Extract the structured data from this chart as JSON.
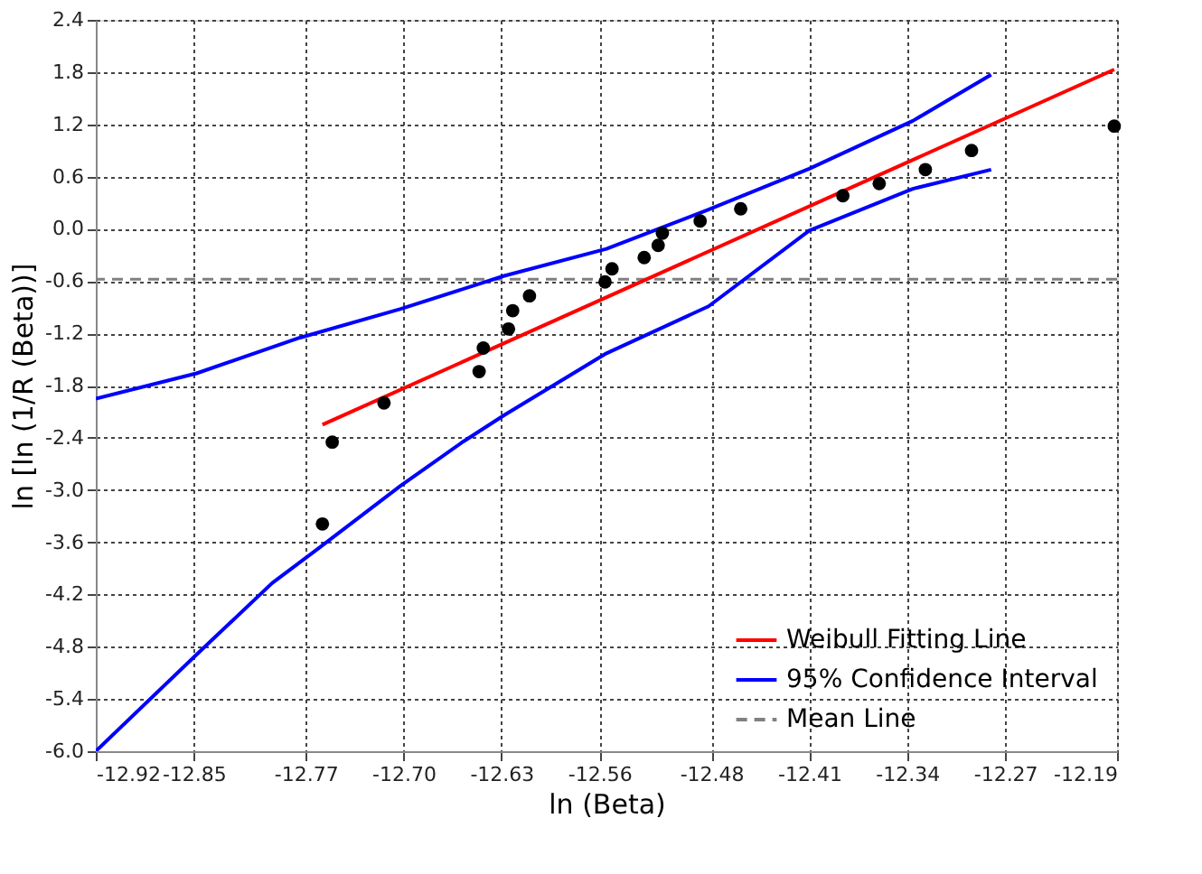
{
  "chart_data": {
    "type": "line",
    "xlabel": "ln (Beta)",
    "ylabel": "ln [ln (1/R (Beta))]",
    "xlim": [
      -12.92,
      -12.19
    ],
    "xticks": [
      -12.92,
      -12.85,
      -12.77,
      {
        "value": -12.7,
        "label": "-12.70"
      },
      -12.63,
      -12.56,
      -12.48,
      -12.41,
      -12.34,
      -12.27,
      -12.19
    ],
    "ylim": [
      -6.0,
      2.4
    ],
    "yticks": [
      {
        "value": -6.0,
        "label": "-6.0"
      },
      -5.4,
      -4.8,
      -4.2,
      -3.6,
      {
        "value": -3.0,
        "label": "-3.0"
      },
      -2.4,
      -1.8,
      -1.2,
      -0.6,
      {
        "value": 0.0,
        "label": "0.0"
      },
      0.6,
      1.2,
      1.8,
      2.4
    ],
    "grid": true,
    "legend": "bottom right",
    "line_style": "solid",
    "series": [
      {
        "type": "scatter",
        "color": "#000000",
        "marker": "circle",
        "x": [
          -12.758,
          -12.751,
          -12.714,
          -12.646,
          -12.643,
          -12.625,
          -12.622,
          -12.61,
          -12.556,
          -12.551,
          -12.528,
          -12.518,
          -12.515,
          -12.488,
          -12.459,
          -12.386,
          -12.36,
          -12.327,
          -12.294,
          -12.192
        ],
        "values": [
          -3.39,
          -2.45,
          -2.0,
          -1.64,
          -1.37,
          -1.15,
          -0.94,
          -0.77,
          -0.61,
          -0.46,
          -0.33,
          -0.19,
          -0.05,
          0.09,
          0.23,
          0.38,
          0.52,
          0.68,
          0.9,
          1.18
        ]
      },
      {
        "name": "Weibull Fitting Line",
        "color": "#ff0000",
        "x": [
          -12.758,
          -12.192
        ],
        "values": [
          -2.25,
          1.83
        ]
      },
      {
        "name": "95% Confidence Interval",
        "color": "#0000ff",
        "x": [
          -12.92,
          -12.848,
          -12.774,
          -12.702,
          -12.628,
          -12.555,
          -12.482,
          -12.41,
          -12.336,
          -12.28
        ],
        "values": [
          -1.95,
          -1.66,
          -1.25,
          -0.92,
          -0.54,
          -0.23,
          0.22,
          0.69,
          1.24,
          1.77
        ]
      },
      {
        "color": "#0000ff",
        "x": [
          -12.92,
          -12.848,
          -12.794,
          -12.76,
          -12.702,
          -12.657,
          -12.628,
          -12.555,
          -12.482,
          -12.41,
          -12.336,
          -12.28
        ],
        "values": [
          -6.0,
          -4.89,
          -4.07,
          -3.66,
          -2.95,
          -2.44,
          -2.14,
          -1.43,
          -0.89,
          -0.02,
          0.46,
          0.68
        ]
      }
    ],
    "ref_lines": [
      {
        "axis": "y",
        "value": -0.58,
        "label": "Mean Line",
        "color": "#808080",
        "line_style": "dashed"
      }
    ]
  }
}
